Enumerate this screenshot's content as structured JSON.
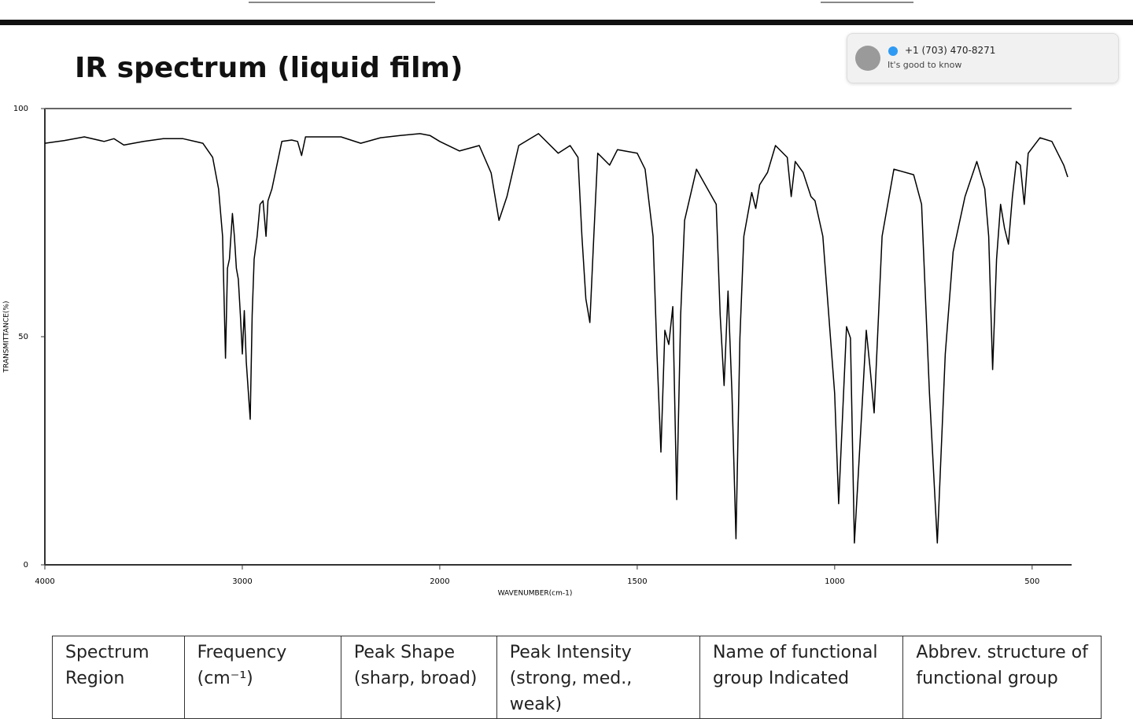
{
  "notification": {
    "sender": "+1 (703) 470-8271",
    "message": "It's good to know"
  },
  "chart_data": {
    "type": "line",
    "title": "IR spectrum (liquid film)",
    "x_label": "WAVENUMBER(cm-1)",
    "y_label": "TRANSMITTANCE(%)",
    "x": [
      4000,
      3900,
      3800,
      3700,
      3650,
      3600,
      3500,
      3400,
      3300,
      3200,
      3150,
      3120,
      3100,
      3085,
      3075,
      3065,
      3050,
      3040,
      3030,
      3020,
      3010,
      3000,
      2990,
      2980,
      2960,
      2950,
      2940,
      2925,
      2910,
      2895,
      2880,
      2870,
      2850,
      2800,
      2750,
      2720,
      2700,
      2680,
      2500,
      2400,
      2300,
      2200,
      2100,
      2050,
      2000,
      1950,
      1900,
      1870,
      1850,
      1830,
      1800,
      1750,
      1700,
      1670,
      1650,
      1640,
      1630,
      1620,
      1610,
      1600,
      1570,
      1550,
      1500,
      1480,
      1460,
      1450,
      1440,
      1430,
      1420,
      1410,
      1400,
      1390,
      1380,
      1350,
      1300,
      1290,
      1280,
      1270,
      1260,
      1250,
      1240,
      1230,
      1210,
      1200,
      1190,
      1170,
      1150,
      1120,
      1110,
      1100,
      1080,
      1060,
      1050,
      1030,
      1000,
      990,
      970,
      960,
      950,
      940,
      920,
      910,
      900,
      880,
      850,
      800,
      780,
      760,
      740,
      720,
      700,
      670,
      640,
      620,
      610,
      600,
      590,
      580,
      570,
      560,
      550,
      540,
      530,
      520,
      510,
      480,
      450,
      420,
      410
    ],
    "values": [
      92.4,
      93,
      93.8,
      92.8,
      93.4,
      92,
      92.8,
      93.4,
      93.4,
      92.4,
      89.3,
      82.4,
      72,
      45.3,
      65,
      67,
      77,
      72,
      65,
      62.6,
      54.8,
      46.2,
      55.7,
      44.5,
      31.9,
      54.8,
      67,
      72,
      79,
      79.8,
      72,
      79.8,
      82.4,
      92.8,
      93.1,
      92.8,
      89.7,
      93.8,
      93.8,
      92.4,
      93.6,
      94.1,
      94.5,
      94.1,
      92.8,
      90.7,
      91.9,
      85.9,
      75.5,
      80.7,
      91.9,
      94.5,
      90.2,
      91.9,
      89.3,
      72,
      58.3,
      53.1,
      72,
      90.2,
      87.6,
      91,
      90.2,
      86.7,
      72,
      46.2,
      24.7,
      51.4,
      48.3,
      56.6,
      14.3,
      54.8,
      75.5,
      86.7,
      79,
      54.8,
      39.3,
      60,
      37.6,
      5.7,
      49.7,
      72,
      81.6,
      78.1,
      83.3,
      86,
      91.9,
      89.3,
      80.7,
      88.4,
      86,
      80.7,
      79.8,
      72,
      37.6,
      13.4,
      52.2,
      49.7,
      4.8,
      20.3,
      51.4,
      42.8,
      33.3,
      72,
      86.7,
      85.5,
      79,
      37.6,
      4.8,
      46.2,
      68.6,
      80.7,
      88.4,
      82.4,
      72,
      42.8,
      67,
      79,
      73.8,
      70.3,
      80.7,
      88.4,
      87.6,
      79,
      90.2,
      93.6,
      92.8,
      87.6,
      85
    ],
    "color": "#000000",
    "xlim": [
      4000,
      400
    ],
    "ylim": [
      0,
      100
    ],
    "xticks": [
      4000,
      3000,
      2000,
      1500,
      1000,
      500
    ],
    "yticks": [
      0,
      50,
      100
    ],
    "x_scale_break": 2000
  },
  "table": {
    "headers": [
      "Spectrum Region",
      "Frequency (cm⁻¹)",
      "Peak Shape (sharp, broad)",
      "Peak Intensity (strong, med., weak)",
      "Name of functional group Indicated",
      "Abbrev. structure of functional group"
    ]
  }
}
